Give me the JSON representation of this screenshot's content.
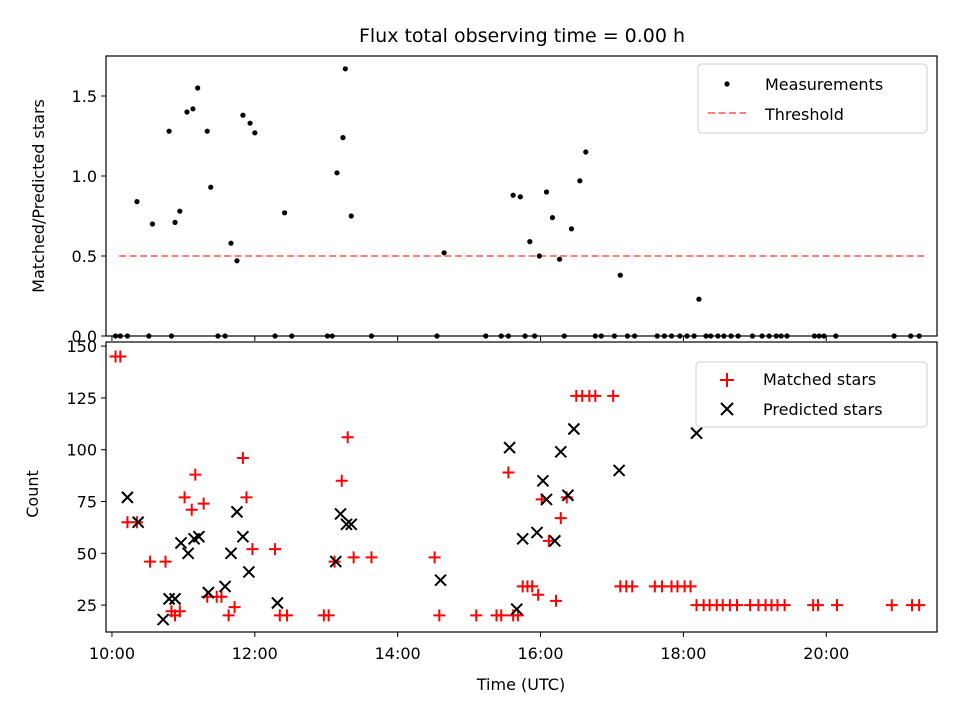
{
  "chart_data": [
    {
      "type": "scatter",
      "title": "Flux total observing time = 0.00 h",
      "xlabel": "",
      "ylabel": "Matched/Predicted stars",
      "xlim": [
        "09:55",
        "21:33"
      ],
      "ylim": [
        0,
        1.75
      ],
      "yticks": [
        0.0,
        0.5,
        1.0,
        1.5
      ],
      "ytick_labels": [
        "0.0",
        "0.5",
        "1.0",
        "1.5"
      ],
      "legend_position": "upper right",
      "series": [
        {
          "name": "Measurements",
          "marker": "dot",
          "color": "#000000",
          "points": [
            [
              "10:03",
              0
            ],
            [
              "10:07",
              0
            ],
            [
              "10:13",
              0
            ],
            [
              "10:21",
              0.84
            ],
            [
              "10:31",
              0
            ],
            [
              "10:34",
              0.7
            ],
            [
              "10:50",
              0
            ],
            [
              "10:48",
              1.28
            ],
            [
              "10:53",
              0.71
            ],
            [
              "10:57",
              0.78
            ],
            [
              "11:03",
              1.4
            ],
            [
              "11:08",
              1.42
            ],
            [
              "11:12",
              1.55
            ],
            [
              "11:20",
              1.28
            ],
            [
              "11:23",
              0.93
            ],
            [
              "11:29",
              0
            ],
            [
              "11:35",
              0
            ],
            [
              "11:40",
              0.58
            ],
            [
              "11:45",
              0.47
            ],
            [
              "11:50",
              1.38
            ],
            [
              "11:56",
              1.33
            ],
            [
              "12:00",
              1.27
            ],
            [
              "12:17",
              0
            ],
            [
              "12:25",
              0.77
            ],
            [
              "12:31",
              0
            ],
            [
              "13:01",
              0
            ],
            [
              "13:05",
              0
            ],
            [
              "13:09",
              1.02
            ],
            [
              "13:14",
              1.24
            ],
            [
              "13:16",
              1.67
            ],
            [
              "13:21",
              0.75
            ],
            [
              "13:38",
              0
            ],
            [
              "14:33",
              0
            ],
            [
              "14:39",
              0.52
            ],
            [
              "15:14",
              0
            ],
            [
              "15:27",
              0
            ],
            [
              "15:33",
              0
            ],
            [
              "15:37",
              0.88
            ],
            [
              "15:43",
              0.87
            ],
            [
              "15:47",
              0
            ],
            [
              "15:51",
              0.59
            ],
            [
              "15:55",
              0
            ],
            [
              "15:59",
              0.5
            ],
            [
              "16:05",
              0.9
            ],
            [
              "16:10",
              0.74
            ],
            [
              "16:16",
              0.48
            ],
            [
              "16:20",
              0
            ],
            [
              "16:26",
              0.67
            ],
            [
              "16:33",
              0.97
            ],
            [
              "16:38",
              1.15
            ],
            [
              "16:46",
              0
            ],
            [
              "16:51",
              0
            ],
            [
              "17:02",
              0
            ],
            [
              "17:07",
              0.38
            ],
            [
              "17:13",
              0
            ],
            [
              "17:19",
              0
            ],
            [
              "17:38",
              0
            ],
            [
              "17:44",
              0
            ],
            [
              "17:50",
              0
            ],
            [
              "17:57",
              0
            ],
            [
              "18:03",
              0
            ],
            [
              "18:09",
              0
            ],
            [
              "18:13",
              0.23
            ],
            [
              "18:19",
              0
            ],
            [
              "18:23",
              0
            ],
            [
              "18:29",
              0
            ],
            [
              "18:34",
              0
            ],
            [
              "18:40",
              0
            ],
            [
              "18:46",
              0
            ],
            [
              "18:58",
              0
            ],
            [
              "19:06",
              0
            ],
            [
              "19:12",
              0
            ],
            [
              "19:18",
              0
            ],
            [
              "19:22",
              0
            ],
            [
              "19:27",
              0
            ],
            [
              "19:50",
              0
            ],
            [
              "19:54",
              0
            ],
            [
              "19:58",
              0
            ],
            [
              "20:08",
              0
            ],
            [
              "20:57",
              0
            ],
            [
              "21:11",
              0
            ],
            [
              "21:18",
              0
            ]
          ]
        },
        {
          "name": "Threshold",
          "style": "dashed-line",
          "color": "#ff7f7f",
          "points": [
            [
              "10:06",
              0.5
            ],
            [
              "21:23",
              0.5
            ]
          ]
        }
      ]
    },
    {
      "type": "scatter",
      "title": "",
      "xlabel": "Time (UTC)",
      "ylabel": "Count",
      "xlim": [
        "09:55",
        "21:33"
      ],
      "ylim": [
        12,
        152
      ],
      "yticks": [
        25,
        50,
        75,
        100,
        125,
        150
      ],
      "ytick_labels": [
        "25",
        "50",
        "75",
        "100",
        "125",
        "150"
      ],
      "xticks": [
        "10:00",
        "12:00",
        "14:00",
        "16:00",
        "18:00",
        "20:00"
      ],
      "xtick_labels": [
        "10:00",
        "12:00",
        "14:00",
        "16:00",
        "18:00",
        "20:00"
      ],
      "legend_position": "upper right",
      "series": [
        {
          "name": "Matched stars",
          "marker": "plus",
          "color": "#ff0000",
          "points": [
            [
              "10:03",
              145
            ],
            [
              "10:07",
              145
            ],
            [
              "10:13",
              65
            ],
            [
              "10:21",
              65
            ],
            [
              "10:32",
              46
            ],
            [
              "10:45",
              46
            ],
            [
              "10:50",
              22
            ],
            [
              "10:53",
              20
            ],
            [
              "10:57",
              22
            ],
            [
              "11:01",
              77
            ],
            [
              "11:07",
              71
            ],
            [
              "11:10",
              88
            ],
            [
              "11:17",
              74
            ],
            [
              "11:20",
              29
            ],
            [
              "11:28",
              29
            ],
            [
              "11:32",
              29
            ],
            [
              "11:38",
              20
            ],
            [
              "11:43",
              24
            ],
            [
              "11:50",
              96
            ],
            [
              "11:53",
              77
            ],
            [
              "11:58",
              52
            ],
            [
              "12:17",
              52
            ],
            [
              "12:21",
              20
            ],
            [
              "12:27",
              20
            ],
            [
              "12:58",
              20
            ],
            [
              "13:02",
              20
            ],
            [
              "13:07",
              46
            ],
            [
              "13:13",
              85
            ],
            [
              "13:18",
              106
            ],
            [
              "13:23",
              48
            ],
            [
              "13:38",
              48
            ],
            [
              "14:31",
              48
            ],
            [
              "14:35",
              20
            ],
            [
              "15:06",
              20
            ],
            [
              "15:23",
              20
            ],
            [
              "15:27",
              20
            ],
            [
              "15:33",
              89
            ],
            [
              "15:37",
              20
            ],
            [
              "15:41",
              20
            ],
            [
              "15:45",
              34
            ],
            [
              "15:49",
              34
            ],
            [
              "15:53",
              34
            ],
            [
              "15:58",
              30
            ],
            [
              "16:01",
              76
            ],
            [
              "16:07",
              56
            ],
            [
              "16:13",
              27
            ],
            [
              "16:17",
              67
            ],
            [
              "16:22",
              77
            ],
            [
              "16:30",
              126
            ],
            [
              "16:35",
              126
            ],
            [
              "16:41",
              126
            ],
            [
              "16:46",
              126
            ],
            [
              "17:01",
              126
            ],
            [
              "17:07",
              34
            ],
            [
              "17:12",
              34
            ],
            [
              "17:17",
              34
            ],
            [
              "17:36",
              34
            ],
            [
              "17:42",
              34
            ],
            [
              "17:50",
              34
            ],
            [
              "17:55",
              34
            ],
            [
              "18:01",
              34
            ],
            [
              "18:06",
              34
            ],
            [
              "18:11",
              25
            ],
            [
              "18:17",
              25
            ],
            [
              "18:22",
              25
            ],
            [
              "18:28",
              25
            ],
            [
              "18:33",
              25
            ],
            [
              "18:39",
              25
            ],
            [
              "18:45",
              25
            ],
            [
              "18:56",
              25
            ],
            [
              "19:03",
              25
            ],
            [
              "19:09",
              25
            ],
            [
              "19:14",
              25
            ],
            [
              "19:19",
              25
            ],
            [
              "19:25",
              25
            ],
            [
              "19:49",
              25
            ],
            [
              "19:53",
              25
            ],
            [
              "20:09",
              25
            ],
            [
              "20:55",
              25
            ],
            [
              "21:12",
              25
            ],
            [
              "21:18",
              25
            ]
          ]
        },
        {
          "name": "Predicted stars",
          "marker": "x",
          "color": "#000000",
          "points": [
            [
              "10:13",
              77
            ],
            [
              "10:22",
              65
            ],
            [
              "10:43",
              18
            ],
            [
              "10:48",
              28
            ],
            [
              "10:53",
              28
            ],
            [
              "10:58",
              55
            ],
            [
              "11:04",
              50
            ],
            [
              "11:09",
              57
            ],
            [
              "11:13",
              58
            ],
            [
              "11:21",
              31
            ],
            [
              "11:35",
              34
            ],
            [
              "11:40",
              50
            ],
            [
              "11:45",
              70
            ],
            [
              "11:50",
              58
            ],
            [
              "11:55",
              41
            ],
            [
              "12:19",
              26
            ],
            [
              "13:08",
              46
            ],
            [
              "13:12",
              69
            ],
            [
              "13:17",
              64
            ],
            [
              "13:21",
              64
            ],
            [
              "14:36",
              37
            ],
            [
              "15:34",
              101
            ],
            [
              "15:40",
              23
            ],
            [
              "15:45",
              57
            ],
            [
              "15:57",
              60
            ],
            [
              "16:02",
              85
            ],
            [
              "16:05",
              76
            ],
            [
              "16:12",
              56
            ],
            [
              "16:17",
              99
            ],
            [
              "16:23",
              78
            ],
            [
              "16:28",
              110
            ],
            [
              "17:06",
              90
            ],
            [
              "18:11",
              108
            ]
          ]
        }
      ]
    }
  ]
}
